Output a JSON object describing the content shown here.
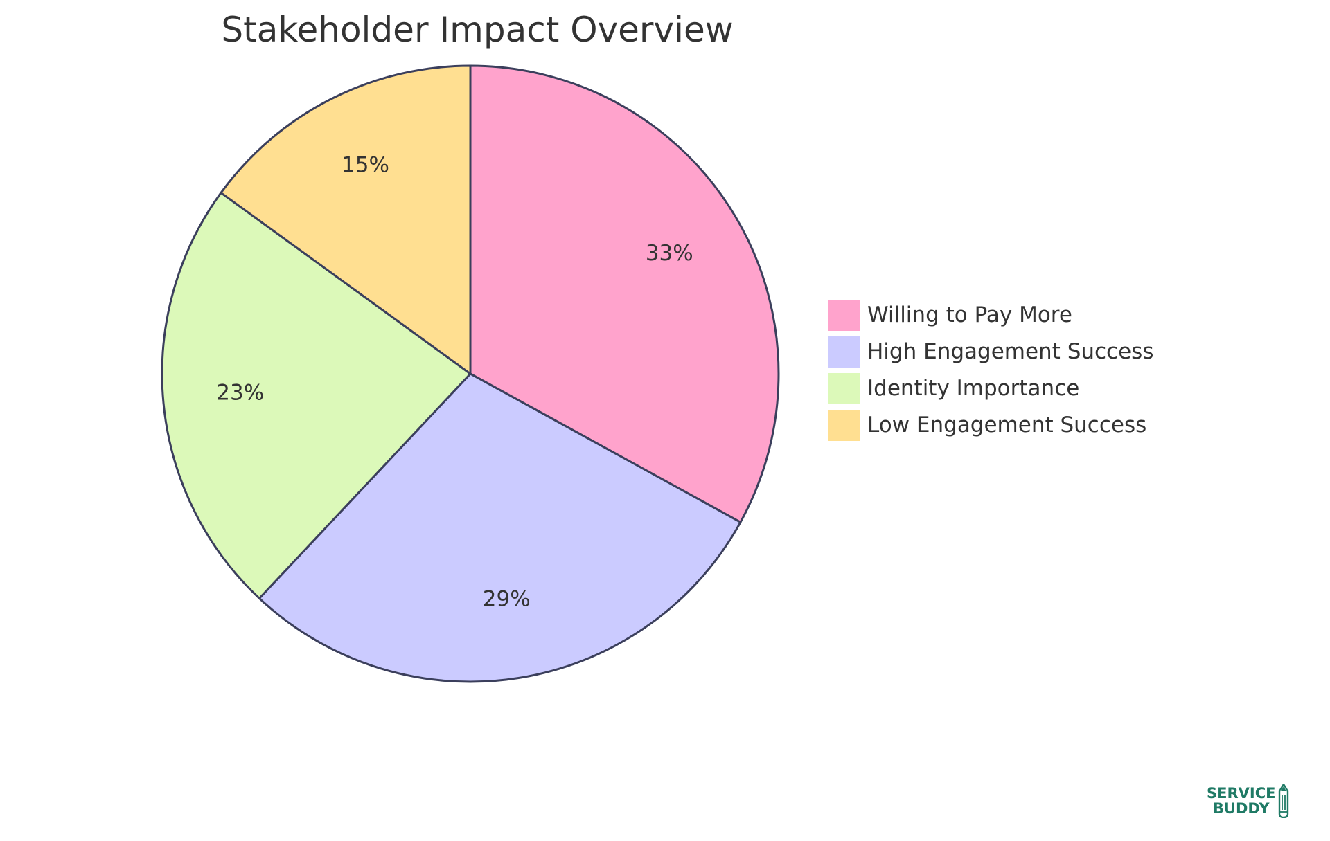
{
  "chart_data": {
    "type": "pie",
    "title": "Stakeholder Impact Overview",
    "categories": [
      "Willing to Pay More",
      "High Engagement Success",
      "Identity Importance",
      "Low Engagement Success"
    ],
    "values": [
      33,
      29,
      23,
      15
    ],
    "labels": [
      "33%",
      "29%",
      "23%",
      "15%"
    ],
    "colors": [
      "#ffa3cc",
      "#cbcbff",
      "#dcf9b9",
      "#ffdf91"
    ],
    "stroke_color": "#3b3f5c",
    "start_angle": "top, clockwise",
    "legend_position": "right"
  },
  "legend": {
    "items": [
      {
        "label": "Willing to Pay More",
        "color": "#ffa3cc"
      },
      {
        "label": "High Engagement Success",
        "color": "#cbcbff"
      },
      {
        "label": "Identity Importance",
        "color": "#dcf9b9"
      },
      {
        "label": "Low Engagement Success",
        "color": "#ffdf91"
      }
    ]
  },
  "logo": {
    "line1": "SERVICE",
    "line2": "BUDDY",
    "icon": "pencil-icon",
    "color": "#1f7a65"
  }
}
